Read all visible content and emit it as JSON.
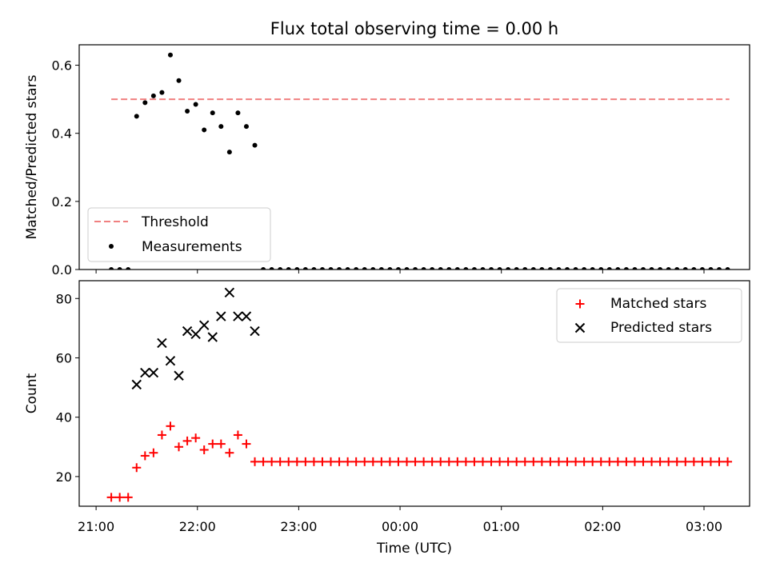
{
  "figure": {
    "title": "Flux total observing time = 0.00 h",
    "xlabel": "Time (UTC)",
    "x_ticks": [
      {
        "value": 0,
        "label": "21:00"
      },
      {
        "value": 60,
        "label": "22:00"
      },
      {
        "value": 120,
        "label": "23:00"
      },
      {
        "value": 180,
        "label": "00:00"
      },
      {
        "value": 240,
        "label": "01:00"
      },
      {
        "value": 300,
        "label": "02:00"
      },
      {
        "value": 360,
        "label": "03:00"
      }
    ],
    "colors": {
      "threshold": "#f08080",
      "measurements": "#000000",
      "matched": "#ff0000",
      "predicted": "#000000"
    }
  },
  "chart_data": [
    {
      "type": "scatter",
      "title": "Flux total observing time = 0.00 h",
      "xlabel": "",
      "ylabel": "Matched/Predicted stars",
      "xlim": [
        -10,
        387
      ],
      "ylim": [
        0,
        0.66
      ],
      "yticks": [
        {
          "value": 0.0,
          "label": "0.0"
        },
        {
          "value": 0.2,
          "label": "0.2"
        },
        {
          "value": 0.4,
          "label": "0.4"
        },
        {
          "value": 0.6,
          "label": "0.6"
        }
      ],
      "legend": {
        "position": "lower-left",
        "entries": [
          "Threshold",
          "Measurements"
        ]
      },
      "threshold": {
        "name": "Threshold",
        "y": 0.5,
        "x_start": 9,
        "x_end": 375
      },
      "series": [
        {
          "name": "Measurements",
          "x": [
            9,
            14,
            19,
            24,
            29,
            34,
            39,
            44,
            49,
            54,
            59,
            64,
            69,
            74,
            79,
            84,
            89,
            94,
            99,
            104,
            109,
            114,
            119,
            124,
            129,
            134,
            139,
            144,
            149,
            154,
            159,
            164,
            169,
            174,
            179,
            184,
            189,
            194,
            199,
            204,
            209,
            214,
            219,
            224,
            229,
            234,
            239,
            244,
            249,
            254,
            259,
            264,
            269,
            274,
            279,
            284,
            289,
            294,
            299,
            304,
            309,
            314,
            319,
            324,
            329,
            334,
            339,
            344,
            349,
            354,
            359,
            364,
            369,
            374
          ],
          "y": [
            0,
            0,
            0,
            0.45,
            0.49,
            0.51,
            0.52,
            0.63,
            0.555,
            0.465,
            0.485,
            0.41,
            0.46,
            0.42,
            0.345,
            0.46,
            0.42,
            0.365,
            0,
            0,
            0,
            0,
            0,
            0,
            0,
            0,
            0,
            0,
            0,
            0,
            0,
            0,
            0,
            0,
            0,
            0,
            0,
            0,
            0,
            0,
            0,
            0,
            0,
            0,
            0,
            0,
            0,
            0,
            0,
            0,
            0,
            0,
            0,
            0,
            0,
            0,
            0,
            0,
            0,
            0,
            0,
            0,
            0,
            0,
            0,
            0,
            0,
            0,
            0,
            0,
            0,
            0,
            0,
            0
          ]
        }
      ]
    },
    {
      "type": "scatter",
      "xlabel": "Time (UTC)",
      "ylabel": "Count",
      "xlim": [
        -10,
        387
      ],
      "ylim": [
        10,
        86
      ],
      "yticks": [
        {
          "value": 20,
          "label": "20"
        },
        {
          "value": 40,
          "label": "40"
        },
        {
          "value": 60,
          "label": "60"
        },
        {
          "value": 80,
          "label": "80"
        }
      ],
      "legend": {
        "position": "top-right",
        "entries": [
          "Matched stars",
          "Predicted stars"
        ]
      },
      "series": [
        {
          "name": "Matched stars",
          "x": [
            9,
            14,
            19,
            24,
            29,
            34,
            39,
            44,
            49,
            54,
            59,
            64,
            69,
            74,
            79,
            84,
            89,
            94,
            99,
            104,
            109,
            114,
            119,
            124,
            129,
            134,
            139,
            144,
            149,
            154,
            159,
            164,
            169,
            174,
            179,
            184,
            189,
            194,
            199,
            204,
            209,
            214,
            219,
            224,
            229,
            234,
            239,
            244,
            249,
            254,
            259,
            264,
            269,
            274,
            279,
            284,
            289,
            294,
            299,
            304,
            309,
            314,
            319,
            324,
            329,
            334,
            339,
            344,
            349,
            354,
            359,
            364,
            369,
            374
          ],
          "y": [
            13,
            13,
            13,
            23,
            27,
            28,
            34,
            37,
            30,
            32,
            33,
            29,
            31,
            31,
            28,
            34,
            31,
            25,
            25,
            25,
            25,
            25,
            25,
            25,
            25,
            25,
            25,
            25,
            25,
            25,
            25,
            25,
            25,
            25,
            25,
            25,
            25,
            25,
            25,
            25,
            25,
            25,
            25,
            25,
            25,
            25,
            25,
            25,
            25,
            25,
            25,
            25,
            25,
            25,
            25,
            25,
            25,
            25,
            25,
            25,
            25,
            25,
            25,
            25,
            25,
            25,
            25,
            25,
            25,
            25,
            25,
            25,
            25,
            25
          ]
        },
        {
          "name": "Predicted stars",
          "x": [
            24,
            29,
            34,
            39,
            44,
            49,
            54,
            59,
            64,
            69,
            74,
            79,
            84,
            89,
            94
          ],
          "y": [
            51,
            55,
            55,
            65,
            59,
            54,
            69,
            68,
            71,
            67,
            74,
            82,
            74,
            74,
            69
          ]
        }
      ]
    }
  ]
}
